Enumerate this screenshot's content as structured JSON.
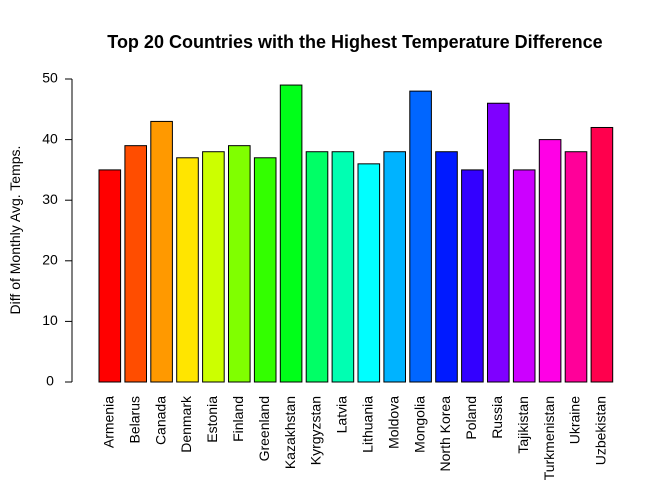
{
  "chart_data": {
    "type": "bar",
    "title": "Top 20 Countries with the Highest Temperature Difference",
    "xlabel": "",
    "ylabel": "Diff of Monthly Avg. Temps.",
    "ylim": [
      0,
      50
    ],
    "yticks": [
      0,
      10,
      20,
      30,
      40,
      50
    ],
    "grid": false,
    "categories": [
      "Armenia",
      "Belarus",
      "Canada",
      "Denmark",
      "Estonia",
      "Finland",
      "Greenland",
      "Kazakhstan",
      "Kyrgyzstan",
      "Latvia",
      "Lithuania",
      "Moldova",
      "Mongolia",
      "North Korea",
      "Poland",
      "Russia",
      "Tajikistan",
      "Turkmenistan",
      "Ukraine",
      "Uzbekistan"
    ],
    "values": [
      35,
      39,
      43,
      37,
      38,
      39,
      37,
      49,
      38,
      38,
      36,
      38,
      48,
      38,
      35,
      46,
      35,
      40,
      38,
      42
    ],
    "colors": [
      "#FF0000",
      "#FF4D00",
      "#FF9900",
      "#FFE500",
      "#CCFF00",
      "#80FF00",
      "#33FF00",
      "#00FF19",
      "#00FF66",
      "#00FFB2",
      "#00FFFF",
      "#00B3FF",
      "#0066FF",
      "#001AFF",
      "#3300FF",
      "#7F00FF",
      "#CC00FF",
      "#FF00E6",
      "#FF0099",
      "#FF004D"
    ]
  }
}
